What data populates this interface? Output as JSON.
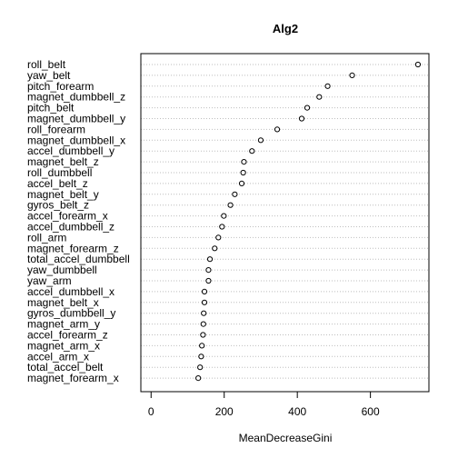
{
  "chart_data": {
    "type": "scatter",
    "title": "Alg2",
    "xlabel": "MeanDecreaseGini",
    "ylabel": "",
    "xlim": [
      -28,
      760
    ],
    "xticks": [
      0,
      200,
      400,
      600
    ],
    "grid": "horizontal dotted guide lines per variable",
    "categories": [
      "roll_belt",
      "yaw_belt",
      "pitch_forearm",
      "magnet_dumbbell_z",
      "pitch_belt",
      "magnet_dumbbell_y",
      "roll_forearm",
      "magnet_dumbbell_x",
      "accel_dumbbell_y",
      "magnet_belt_z",
      "roll_dumbbell",
      "accel_belt_z",
      "magnet_belt_y",
      "gyros_belt_z",
      "accel_forearm_x",
      "accel_dumbbell_z",
      "roll_arm",
      "magnet_forearm_z",
      "total_accel_dumbbell",
      "yaw_dumbbell",
      "yaw_arm",
      "accel_dumbbell_x",
      "magnet_belt_x",
      "gyros_dumbbell_y",
      "magnet_arm_y",
      "accel_forearm_z",
      "magnet_arm_x",
      "accel_arm_x",
      "total_accel_belt",
      "magnet_forearm_x"
    ],
    "values": [
      730,
      550,
      483,
      460,
      427,
      412,
      345,
      300,
      276,
      254,
      252,
      248,
      229,
      217,
      199,
      194,
      184,
      174,
      161,
      157,
      157,
      146,
      146,
      144,
      143,
      142,
      139,
      137,
      134,
      129
    ]
  }
}
